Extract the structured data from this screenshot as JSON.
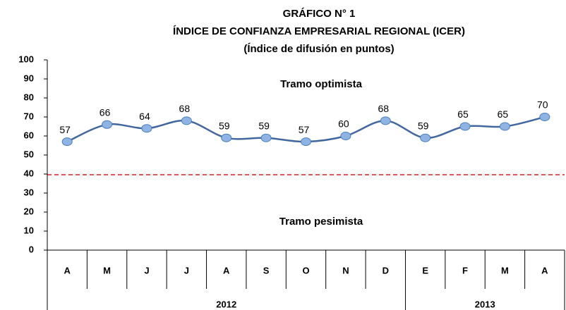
{
  "chart_data": {
    "type": "line",
    "title": "GRÁFICO N° 1",
    "subtitle": "ÍNDICE  DE CONFIANZA EMPRESARIAL REGIONAL (ICER)",
    "subtitle2": "(Índice de difusión en puntos)",
    "annotations": [
      "Tramo optimista",
      "Tramo pesimista"
    ],
    "groups": [
      {
        "name": "2012",
        "categories": [
          "A",
          "M",
          "J",
          "J",
          "A",
          "S",
          "O",
          "N",
          "D"
        ]
      },
      {
        "name": "2013",
        "categories": [
          "E",
          "F",
          "M",
          "A"
        ]
      }
    ],
    "series": [
      {
        "name": "ICER",
        "color": "#41679e",
        "values": [
          57,
          66,
          64,
          68,
          59,
          59,
          57,
          60,
          68,
          59,
          65,
          65,
          70
        ]
      }
    ],
    "ylim": [
      0,
      100
    ],
    "yticks": [
      0,
      10,
      20,
      30,
      40,
      50,
      60,
      70,
      80,
      90,
      100
    ]
  }
}
